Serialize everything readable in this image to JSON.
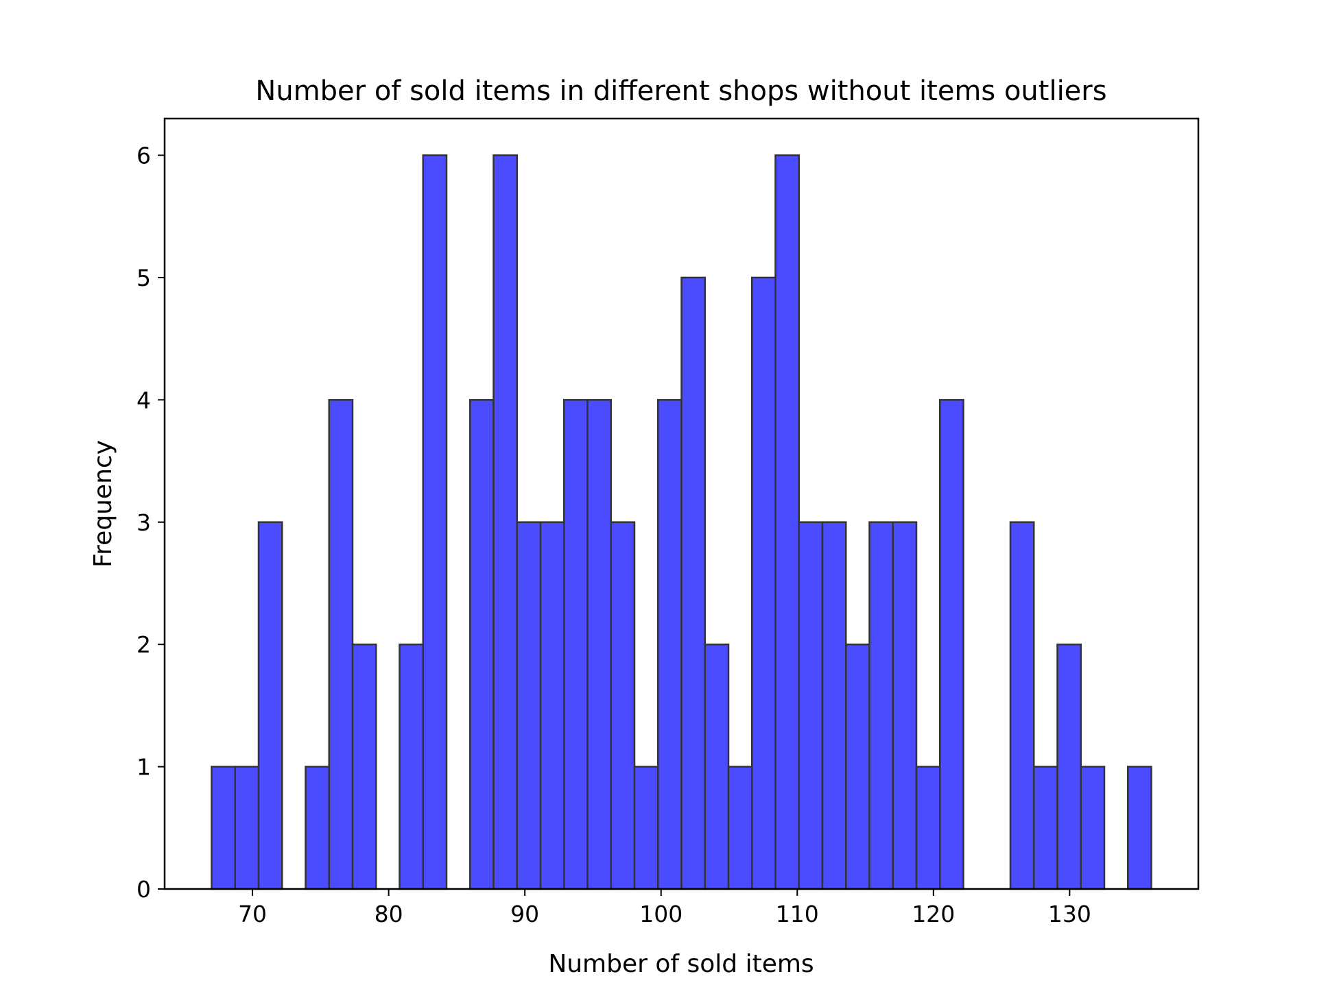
{
  "chart_data": {
    "type": "bar",
    "title": "Number of sold items in different shops without items outliers",
    "xlabel": "Number of sold items",
    "ylabel": "Frequency",
    "xlim": [
      63.55,
      139.45
    ],
    "ylim": [
      0,
      6.3
    ],
    "xticks": [
      70,
      80,
      90,
      100,
      110,
      120,
      130
    ],
    "yticks": [
      0,
      1,
      2,
      3,
      4,
      5,
      6
    ],
    "grid": false,
    "bin_start": 67,
    "bin_width": 1.725,
    "counts": [
      1,
      1,
      3,
      0,
      1,
      4,
      2,
      0,
      2,
      6,
      0,
      4,
      6,
      3,
      3,
      4,
      4,
      3,
      1,
      4,
      5,
      2,
      1,
      5,
      6,
      3,
      3,
      2,
      3,
      3,
      1,
      4,
      0,
      0,
      3,
      1,
      2,
      1,
      0,
      1
    ],
    "colors": {
      "bar_fill": "#4b4bff",
      "bar_edge": "#333333"
    }
  }
}
